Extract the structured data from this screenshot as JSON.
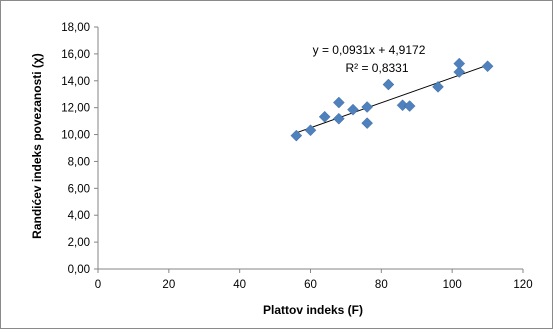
{
  "chart_data": {
    "type": "scatter",
    "xlabel": "Plattov  indeks (F)",
    "ylabel": "Randićev indeks povezanosti  (χ)",
    "xlim": [
      0,
      120
    ],
    "ylim": [
      0,
      18
    ],
    "x_ticks": [
      "0",
      "20",
      "40",
      "60",
      "80",
      "100",
      "120"
    ],
    "y_ticks": [
      "0,00",
      "2,00",
      "4,00",
      "6,00",
      "8,00",
      "10,00",
      "12,00",
      "14,00",
      "16,00",
      "18,00"
    ],
    "grid": false,
    "marker_color": "#4f81bd",
    "points": [
      {
        "x": 56,
        "y": 9.92
      },
      {
        "x": 60,
        "y": 10.32
      },
      {
        "x": 64,
        "y": 11.32
      },
      {
        "x": 68,
        "y": 11.18
      },
      {
        "x": 68,
        "y": 12.38
      },
      {
        "x": 72,
        "y": 11.85
      },
      {
        "x": 76,
        "y": 10.85
      },
      {
        "x": 76,
        "y": 12.05
      },
      {
        "x": 82,
        "y": 13.72
      },
      {
        "x": 86,
        "y": 12.18
      },
      {
        "x": 88,
        "y": 12.12
      },
      {
        "x": 96,
        "y": 13.55
      },
      {
        "x": 102,
        "y": 14.65
      },
      {
        "x": 102,
        "y": 15.28
      },
      {
        "x": 110,
        "y": 15.08
      }
    ],
    "trendline": {
      "slope": 0.0931,
      "intercept": 4.9172,
      "x_range": [
        56,
        110
      ],
      "equation": "y = 0,0931x + 4,9172",
      "r_squared": "R² = 0,8331"
    }
  }
}
